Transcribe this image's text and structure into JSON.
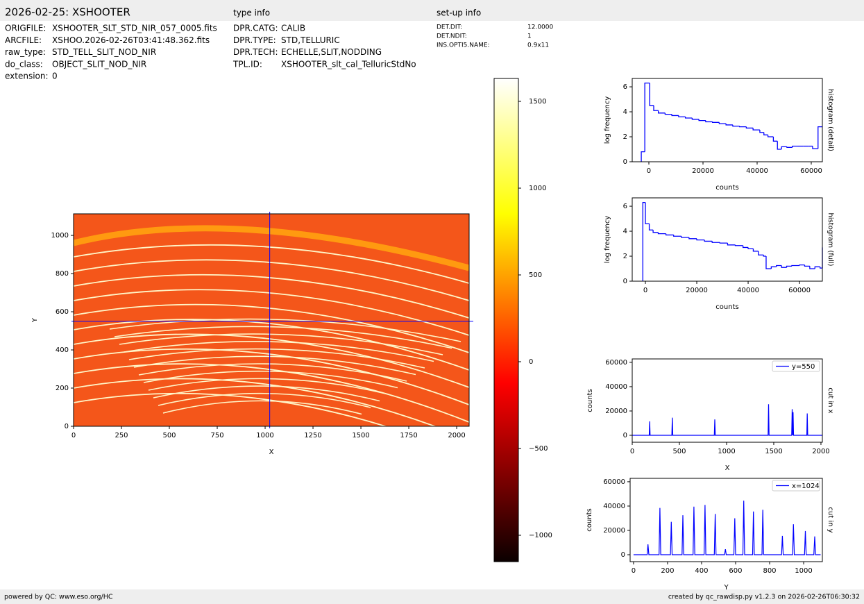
{
  "header": {
    "title": "2026-02-25: XSHOOTER",
    "type_info": "type info",
    "setup_info": "set-up info",
    "file_info": [
      [
        "ORIGFILE:",
        "XSHOOTER_SLT_STD_NIR_057_0005.fits"
      ],
      [
        "ARCFILE:",
        "XSHOO.2026-02-26T03:41:48.362.fits"
      ],
      [
        "raw_type:",
        "STD_TELL_SLIT_NOD_NIR"
      ],
      [
        "do_class:",
        "OBJECT_SLIT_NOD_NIR"
      ],
      [
        "extension:",
        "0"
      ]
    ],
    "type_fields": [
      [
        "DPR.CATG:",
        "CALIB"
      ],
      [
        "DPR.TYPE:",
        "STD,TELLURIC"
      ],
      [
        "DPR.TECH:",
        "ECHELLE,SLIT,NODDING"
      ],
      [
        "TPL.ID:",
        "XSHOOTER_slt_cal_TelluricStdNo"
      ]
    ],
    "setup_fields": [
      [
        "DET.DIT:",
        "12.0000"
      ],
      [
        "DET.NDIT:",
        "1"
      ],
      [
        "INS.OPTI5.NAME:",
        "0.9x11"
      ]
    ]
  },
  "footer": {
    "left": "powered by QC: www.eso.org/HC",
    "right": "created by qc_rawdisp.py v1.2.3 on 2026-02-26T06:30:32"
  },
  "chart_data": [
    {
      "type": "image",
      "xlabel": "X",
      "ylabel": "Y",
      "xlim": [
        0,
        2065
      ],
      "ylim": [
        0,
        1113
      ],
      "xticks": [
        0,
        250,
        500,
        750,
        1000,
        1250,
        1500,
        1750,
        2000
      ],
      "yticks": [
        0,
        200,
        400,
        600,
        800,
        1000
      ],
      "crosshair": {
        "x": 1024,
        "y": 550,
        "color": "#0000ff"
      },
      "clim": [
        -1152,
        1632
      ],
      "cticks": [
        {
          "value": -1000,
          "label": "−1000"
        },
        {
          "value": -500,
          "label": "−500"
        },
        0,
        500,
        1000,
        1500
      ]
    },
    {
      "type": "histogram",
      "xlabel": "counts",
      "ylabel": "log frequency",
      "side_label": "histogram (detail)",
      "color": "#0000ff",
      "xlim": [
        -6150,
        64100
      ],
      "ylim": [
        0,
        6.67
      ],
      "xticks": [
        0,
        20000,
        40000,
        60000
      ],
      "yticks": [
        0,
        2,
        4,
        6
      ],
      "bins": [
        -2800,
        -1500,
        300,
        1800,
        3500,
        6000,
        8500,
        11000,
        13500,
        16000,
        18500,
        21000,
        23500,
        26000,
        28500,
        31000,
        33500,
        36000,
        38500,
        41000,
        42500,
        44000,
        46000,
        47500,
        49000,
        51000,
        53000,
        55000,
        57000,
        59000,
        60500,
        62500,
        64100
      ],
      "counts": [
        0.8,
        6.3,
        4.5,
        4.1,
        3.9,
        3.8,
        3.7,
        3.6,
        3.5,
        3.4,
        3.3,
        3.2,
        3.15,
        3.05,
        2.95,
        2.85,
        2.8,
        2.7,
        2.55,
        2.35,
        2.15,
        2.0,
        1.65,
        1.0,
        1.2,
        1.15,
        1.25,
        1.25,
        1.25,
        1.25,
        1.05,
        2.8
      ]
    },
    {
      "type": "histogram",
      "xlabel": "counts",
      "ylabel": "log frequency",
      "side_label": "histogram (full)",
      "color": "#0000ff",
      "xlim": [
        -5135,
        68900
      ],
      "ylim": [
        0,
        6.67
      ],
      "xticks": [
        0,
        20000,
        40000,
        60000
      ],
      "yticks": [
        0,
        2,
        4,
        6
      ],
      "bins": [
        -1000,
        0,
        1500,
        3000,
        5000,
        8000,
        11000,
        14000,
        17000,
        20000,
        23000,
        26000,
        29000,
        32000,
        35000,
        38000,
        40000,
        42000,
        44000,
        46000,
        47000,
        49000,
        51000,
        53000,
        55000,
        57000,
        60000,
        62000,
        64000,
        66000,
        68000,
        68900
      ],
      "counts": [
        6.3,
        4.6,
        4.1,
        3.9,
        3.8,
        3.7,
        3.6,
        3.5,
        3.4,
        3.3,
        3.2,
        3.1,
        3.05,
        2.9,
        2.85,
        2.7,
        2.6,
        2.4,
        2.1,
        2.0,
        1.0,
        1.15,
        1.25,
        1.1,
        1.2,
        1.25,
        1.3,
        1.2,
        1.0,
        1.15,
        1.05,
        2.7
      ]
    },
    {
      "type": "line",
      "xlabel": "X",
      "ylabel": "counts",
      "side_label": "cut in x",
      "legend": "upper right",
      "xlim": [
        0,
        2015
      ],
      "ylim": [
        -5700,
        62800
      ],
      "xticks": [
        0,
        500,
        1000,
        1500,
        2000
      ],
      "yticks": [
        0,
        20000,
        40000,
        60000
      ],
      "x": [
        0,
        180,
        185,
        190,
        420,
        425,
        430,
        870,
        875,
        880,
        1440,
        1445,
        1450,
        1690,
        1695,
        1700,
        1705,
        1710,
        1850,
        1855,
        1860,
        2015
      ],
      "series": [
        {
          "name": "y=550",
          "color": "#0000ff",
          "values": [
            0,
            0,
            11500,
            0,
            0,
            14500,
            0,
            0,
            13000,
            0,
            0,
            25500,
            0,
            0,
            21500,
            0,
            19000,
            0,
            0,
            18000,
            0,
            0
          ]
        }
      ]
    },
    {
      "type": "line",
      "xlabel": "Y",
      "ylabel": "counts",
      "side_label": "cut in y",
      "legend": "upper right",
      "xlim": [
        -20,
        1110
      ],
      "ylim": [
        -5700,
        62800
      ],
      "xticks": [
        0,
        200,
        400,
        600,
        800,
        1000
      ],
      "yticks": [
        0,
        20000,
        40000,
        60000
      ],
      "x": [
        0,
        80,
        85,
        90,
        150,
        155,
        160,
        217,
        222,
        227,
        285,
        290,
        295,
        350,
        355,
        360,
        415,
        420,
        425,
        475,
        480,
        485,
        535,
        540,
        545,
        590,
        595,
        600,
        643,
        648,
        653,
        700,
        705,
        710,
        755,
        760,
        765,
        870,
        875,
        880,
        935,
        940,
        945,
        1005,
        1010,
        1015,
        1060,
        1065,
        1070,
        1100
      ],
      "series": [
        {
          "name": "x=1024",
          "color": "#0000ff",
          "values": [
            0,
            0,
            8500,
            0,
            0,
            38500,
            0,
            0,
            27000,
            0,
            0,
            32500,
            0,
            0,
            39500,
            0,
            0,
            41000,
            0,
            0,
            33500,
            0,
            0,
            4500,
            0,
            0,
            30000,
            0,
            0,
            44500,
            0,
            0,
            35500,
            0,
            0,
            37000,
            0,
            0,
            15500,
            0,
            0,
            25000,
            0,
            0,
            19500,
            0,
            0,
            15000,
            0,
            0
          ]
        }
      ]
    }
  ]
}
